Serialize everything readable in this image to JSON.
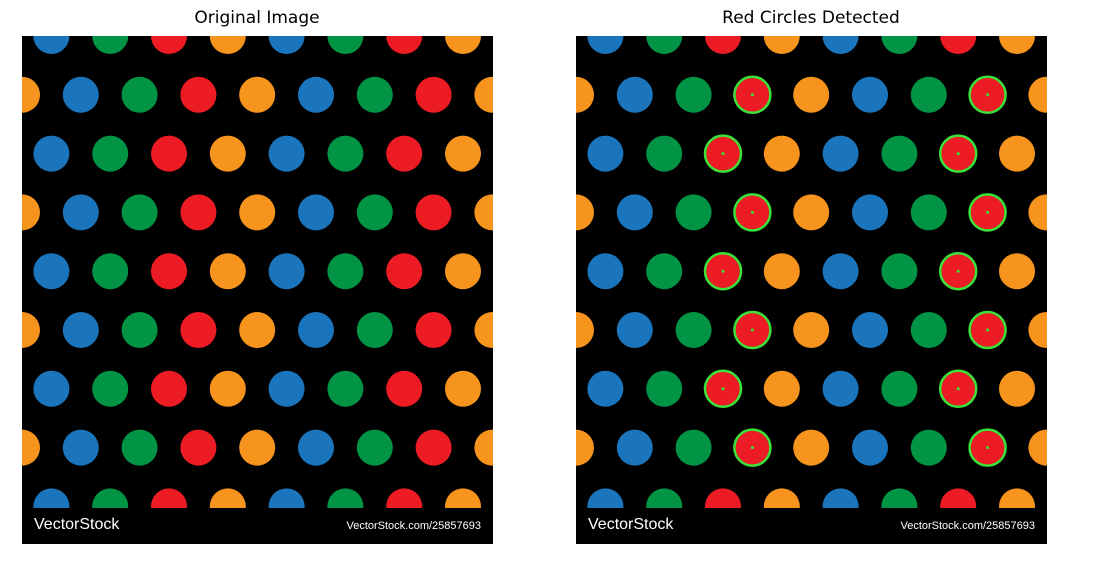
{
  "panels": {
    "left": {
      "title": "Original Image"
    },
    "right": {
      "title": "Red Circles Detected"
    }
  },
  "image": {
    "brand": "VectorStock",
    "url": "VectorStock.com/25857693"
  },
  "colors": {
    "background": "#000000",
    "red": "#ed1c24",
    "orange": "#f7941d",
    "blue": "#1b75bc",
    "green": "#009444",
    "detection": "#39e33a"
  },
  "pattern": [
    "blue",
    "green",
    "red",
    "orange"
  ]
}
